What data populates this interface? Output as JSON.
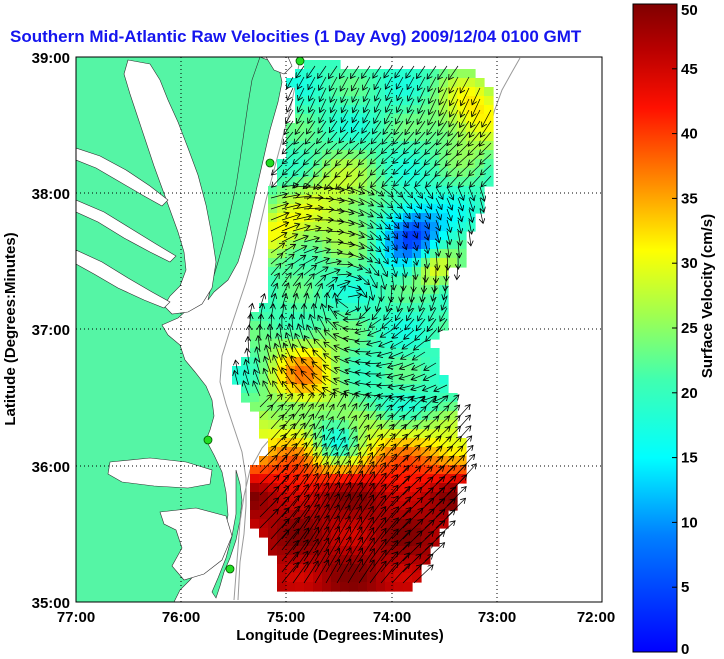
{
  "title": "Southern Mid-Atlantic Raw Velocities (1 Day Avg) 2009/12/04 0100 GMT",
  "x_axis": {
    "label": "Longitude (Degrees:Minutes)",
    "ticks": [
      "77:00",
      "76:00",
      "75:00",
      "74:00",
      "73:00",
      "72:00"
    ]
  },
  "y_axis": {
    "label": "Latitude (Degrees:Minutes)",
    "ticks": [
      "39:00",
      "38:00",
      "37:00",
      "36:00",
      "35:00"
    ]
  },
  "colorbar": {
    "label": "Surface Velocity (cm/s)",
    "ticks": [
      "50",
      "45",
      "40",
      "35",
      "30",
      "25",
      "20",
      "15",
      "10",
      "5",
      "0"
    ],
    "min": 0,
    "max": 50
  },
  "map": {
    "extent": {
      "lon_min": -77,
      "lon_max": -72,
      "lat_min": 35,
      "lat_max": 39
    },
    "grid": true,
    "land_color": "#55f5a5",
    "water_color": "#ffffff",
    "arrow_color": "#000000"
  }
}
